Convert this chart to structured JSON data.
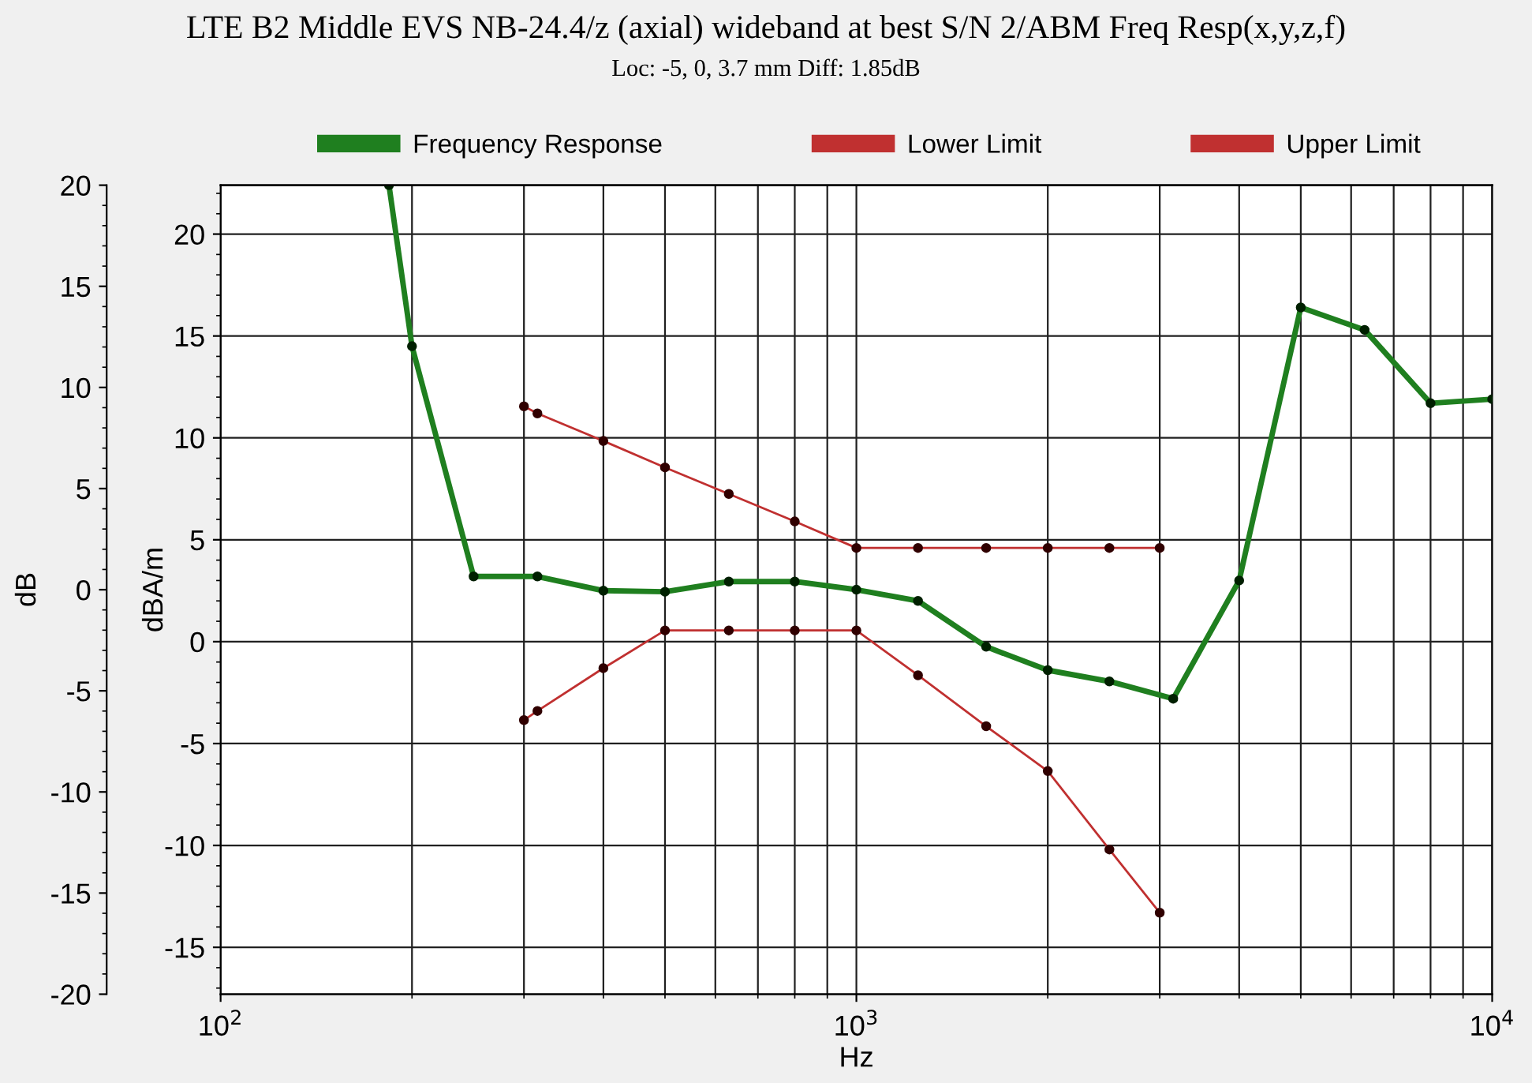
{
  "chart_data": {
    "type": "line",
    "title": "LTE B2 Middle EVS NB-24.4/z (axial) wideband at best S/N 2/ABM Freq Resp(x,y,z,f)",
    "subtitle": "Loc: -5, 0, 3.7 mm Diff: 1.85dB",
    "xlabel": "Hz",
    "ylabel": "dBA/m",
    "y2label": "dB",
    "log": "x",
    "grid": true,
    "legend": "top",
    "marker": "circle",
    "line_style": "solid",
    "xlim": [
      100,
      10000
    ],
    "xticks": [
      {
        "value": 100,
        "label": "10$^{2}$"
      },
      {
        "value": 1000,
        "label": "10$^{3}$"
      },
      {
        "value": 10000,
        "label": "10$^{4}$"
      }
    ],
    "ylim": [
      -17.3,
      22.4
    ],
    "yticks": [
      -15,
      -10,
      -5,
      0,
      5,
      10,
      15,
      20
    ],
    "y2lim": [
      -20,
      20
    ],
    "y2ticks": [
      -20,
      -15,
      -10,
      -5,
      0,
      5,
      10,
      15,
      20
    ],
    "series": [
      {
        "name": "Frequency Response",
        "color": "#1f7f1f",
        "x": [
          184,
          200,
          250,
          315,
          400,
          500,
          630,
          800,
          1000,
          1250,
          1600,
          2000,
          2500,
          3150,
          4000,
          5000,
          6300,
          8000,
          10000
        ],
        "values": [
          22.4,
          14.5,
          3.2,
          3.2,
          2.5,
          2.45,
          2.95,
          2.95,
          2.55,
          2.0,
          -0.25,
          -1.4,
          -1.95,
          -2.8,
          3.0,
          16.4,
          15.3,
          11.7,
          11.9
        ]
      },
      {
        "name": "Lower Limit",
        "color": "#c03030",
        "x": [
          300,
          315,
          400,
          500,
          630,
          800,
          1000,
          1250,
          1600,
          2000,
          2500,
          3000
        ],
        "values": [
          -3.85,
          -3.4,
          -1.3,
          0.55,
          0.55,
          0.55,
          0.55,
          -1.65,
          -4.15,
          -6.35,
          -10.2,
          -13.3
        ]
      },
      {
        "name": "Upper Limit",
        "color": "#c03030",
        "x": [
          300,
          315,
          400,
          500,
          630,
          800,
          1000,
          1250,
          1600,
          2000,
          2500,
          3000
        ],
        "values": [
          11.55,
          11.2,
          9.85,
          8.55,
          7.25,
          5.9,
          4.6,
          4.6,
          4.6,
          4.6,
          4.6,
          4.6
        ]
      }
    ]
  }
}
